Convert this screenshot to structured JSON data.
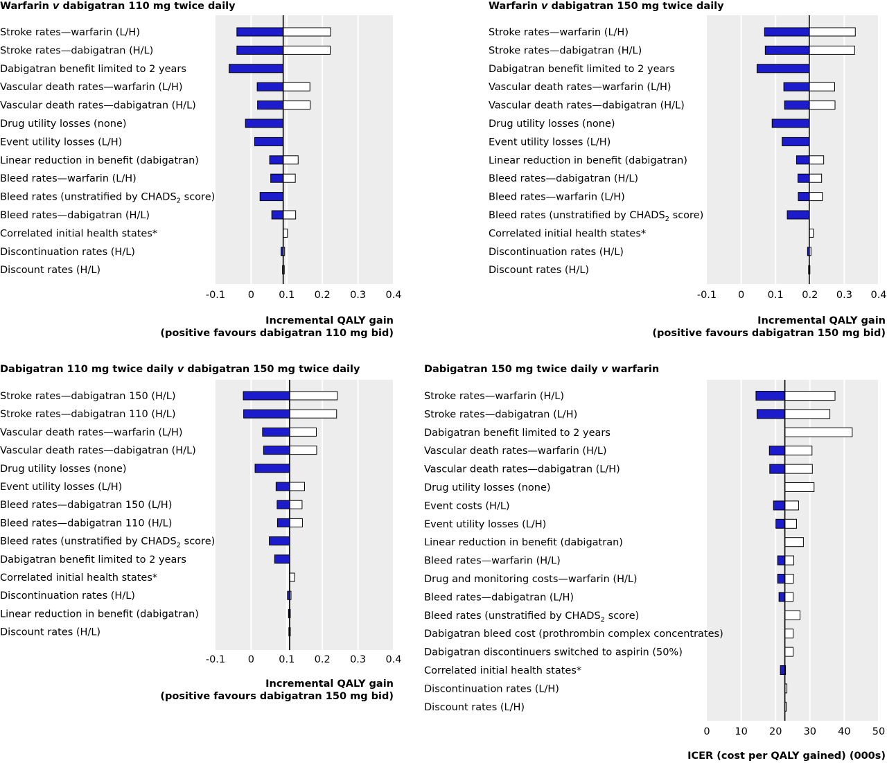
{
  "chart_data": [
    {
      "type": "bar",
      "subtype": "tornado",
      "title_parts": [
        {
          "text": "Warfarin ",
          "italic": false
        },
        {
          "text": "v",
          "italic": true
        },
        {
          "text": " dabigatran 110 mg twice daily",
          "italic": false
        }
      ],
      "xlabel_lines": [
        "Incremental QALY gain",
        "(positive favours dabigatran 110 mg bid)"
      ],
      "xlim": [
        -0.1,
        0.4
      ],
      "xticks": [
        -0.1,
        0,
        0.1,
        0.2,
        0.3,
        0.4
      ],
      "tick_labels": [
        "-0.1",
        "0",
        "0.1",
        "0.2",
        "0.3",
        "0.4"
      ],
      "base": 0.09,
      "grid": true,
      "bars": [
        {
          "label": "Stroke rates—warfarin (L/H)",
          "low": -0.04,
          "high": 0.223
        },
        {
          "label": "Stroke rates—dabigatran (H/L)",
          "low": -0.04,
          "high": 0.222
        },
        {
          "label": "Dabigatran benefit limited to 2 years",
          "low": -0.062,
          "high": 0.09
        },
        {
          "label": "Vascular death rates—warfarin (L/H)",
          "low": 0.017,
          "high": 0.165
        },
        {
          "label": "Vascular death rates—dabigatran (H/L)",
          "low": 0.018,
          "high": 0.166
        },
        {
          "label": "Drug utility losses (none)",
          "low": -0.016,
          "high": 0.09
        },
        {
          "label": "Event utility losses (L/H)",
          "low": 0.01,
          "high": 0.09
        },
        {
          "label": "Linear reduction in benefit (dabigatran)",
          "low": 0.052,
          "high": 0.132
        },
        {
          "label": "Bleed rates—warfarin (L/H)",
          "low": 0.055,
          "high": 0.124
        },
        {
          "label": "Bleed rates (unstratified by CHADS[2] score)",
          "low": 0.025,
          "high": 0.09
        },
        {
          "label": "Bleed rates—dabigatran (H/L)",
          "low": 0.058,
          "high": 0.125
        },
        {
          "label": "Correlated initial health states*",
          "low": 0.09,
          "high": 0.102
        },
        {
          "label": "Discontinuation rates (H/L)",
          "low": 0.084,
          "high": 0.094
        },
        {
          "label": "Discount rates (H/L)",
          "low": 0.088,
          "high": 0.093
        }
      ]
    },
    {
      "type": "bar",
      "subtype": "tornado",
      "title_parts": [
        {
          "text": "Warfarin ",
          "italic": false
        },
        {
          "text": "v",
          "italic": true
        },
        {
          "text": " dabigatran 150 mg twice daily",
          "italic": false
        }
      ],
      "xlabel_lines": [
        "Incremental QALY gain",
        "(positive favours dabigatran 150 mg bid)"
      ],
      "xlim": [
        -0.1,
        0.4
      ],
      "xticks": [
        -0.1,
        0,
        0.1,
        0.2,
        0.3,
        0.4
      ],
      "tick_labels": [
        "-0.1",
        "0",
        "0.1",
        "0.2",
        "0.3",
        "0.4"
      ],
      "base": 0.198,
      "grid": true,
      "bars": [
        {
          "label": "Stroke rates—warfarin (L/H)",
          "low": 0.068,
          "high": 0.332
        },
        {
          "label": "Stroke rates—dabigatran (H/L)",
          "low": 0.07,
          "high": 0.33
        },
        {
          "label": "Dabigatran benefit limited to 2 years",
          "low": 0.046,
          "high": 0.198
        },
        {
          "label": "Vascular death rates—warfarin (L/H)",
          "low": 0.124,
          "high": 0.272
        },
        {
          "label": "Vascular death rates—dabigatran (H/L)",
          "low": 0.126,
          "high": 0.273
        },
        {
          "label": "Drug utility losses (none)",
          "low": 0.09,
          "high": 0.198
        },
        {
          "label": "Event utility losses (L/H)",
          "low": 0.119,
          "high": 0.198
        },
        {
          "label": "Linear reduction in benefit (dabigatran)",
          "low": 0.161,
          "high": 0.24
        },
        {
          "label": "Bleed rates—dabigatran (H/L)",
          "low": 0.165,
          "high": 0.234
        },
        {
          "label": "Bleed rates—warfarin (L/H)",
          "low": 0.166,
          "high": 0.236
        },
        {
          "label": "Bleed rates (unstratified by CHADS[2] score)",
          "low": 0.134,
          "high": 0.198
        },
        {
          "label": "Correlated initial health states*",
          "low": 0.198,
          "high": 0.21
        },
        {
          "label": "Discontinuation rates (H/L)",
          "low": 0.193,
          "high": 0.203
        },
        {
          "label": "Discount rates (H/L)",
          "low": 0.196,
          "high": 0.2
        }
      ]
    },
    {
      "type": "bar",
      "subtype": "tornado",
      "title_parts": [
        {
          "text": "Dabigatran 110 mg twice daily ",
          "italic": false
        },
        {
          "text": "v",
          "italic": true
        },
        {
          "text": " dabigatran 150 mg twice daily",
          "italic": false
        }
      ],
      "xlabel_lines": [
        "Incremental QALY gain",
        "(positive favours dabigatran 150 mg bid)"
      ],
      "xlim": [
        -0.1,
        0.4
      ],
      "xticks": [
        -0.1,
        0,
        0.1,
        0.2,
        0.3,
        0.4
      ],
      "tick_labels": [
        "-0.1",
        "0",
        "0.1",
        "0.2",
        "0.3",
        "0.4"
      ],
      "base": 0.108,
      "grid": true,
      "bars": [
        {
          "label": "Stroke rates—dabigatran 150 (H/L)",
          "low": -0.022,
          "high": 0.242
        },
        {
          "label": "Stroke rates—dabigatran 110 (H/L)",
          "low": -0.021,
          "high": 0.24
        },
        {
          "label": "Vascular death rates—warfarin (L/H)",
          "low": 0.032,
          "high": 0.183
        },
        {
          "label": "Vascular death rates—dabigatran (H/L)",
          "low": 0.035,
          "high": 0.184
        },
        {
          "label": "Drug utility losses (none)",
          "low": 0.011,
          "high": 0.108
        },
        {
          "label": "Event utility losses (L/H)",
          "low": 0.07,
          "high": 0.15
        },
        {
          "label": "Bleed rates—dabigatran 150 (L/H)",
          "low": 0.073,
          "high": 0.143
        },
        {
          "label": "Bleed rates—dabigatran 110 (H/L)",
          "low": 0.074,
          "high": 0.144
        },
        {
          "label": "Bleed rates (unstratified by CHADS[2] score)",
          "low": 0.051,
          "high": 0.108
        },
        {
          "label": "Dabigatran benefit limited to 2 years",
          "low": 0.066,
          "high": 0.108
        },
        {
          "label": "Correlated initial health states*",
          "low": 0.108,
          "high": 0.122
        },
        {
          "label": "Discontinuation rates (H/L)",
          "low": 0.102,
          "high": 0.112
        },
        {
          "label": "Linear reduction in benefit (dabigatran)",
          "low": 0.105,
          "high": 0.109
        },
        {
          "label": "Discount rates (H/L)",
          "low": 0.106,
          "high": 0.11
        }
      ]
    },
    {
      "type": "bar",
      "subtype": "tornado",
      "title_parts": [
        {
          "text": "Dabigatran 150 mg twice daily ",
          "italic": false
        },
        {
          "text": "v",
          "italic": true
        },
        {
          "text": " warfarin",
          "italic": false
        }
      ],
      "xlabel_lines": [
        "ICER (cost per QALY gained) (000s)"
      ],
      "xlim": [
        0,
        50
      ],
      "xticks": [
        0,
        10,
        20,
        30,
        40,
        50
      ],
      "tick_labels": [
        "0",
        "10",
        "20",
        "30",
        "40",
        "50"
      ],
      "base": 22.7,
      "grid": true,
      "bars": [
        {
          "label": "Stroke rates—warfarin (H/L)",
          "low": 14.3,
          "high": 37.3
        },
        {
          "label": "Stroke rates—dabigatran (L/H)",
          "low": 14.6,
          "high": 35.8
        },
        {
          "label": "Dabigatran benefit limited to 2 years",
          "low": 22.7,
          "high": 42.3
        },
        {
          "label": "Vascular death rates—warfarin (H/L)",
          "low": 18.2,
          "high": 30.6
        },
        {
          "label": "Vascular death rates—dabigatran (L/H)",
          "low": 18.3,
          "high": 30.7
        },
        {
          "label": "Drug utility losses (none)",
          "low": 22.7,
          "high": 31.2
        },
        {
          "label": "Event costs (H/L)",
          "low": 19.4,
          "high": 26.7
        },
        {
          "label": "Event utility losses (L/H)",
          "low": 20.1,
          "high": 26.1
        },
        {
          "label": "Linear reduction in benefit (dabigatran)",
          "low": 22.7,
          "high": 28.1
        },
        {
          "label": "Bleed rates—warfarin (H/L)",
          "low": 20.6,
          "high": 25.3
        },
        {
          "label": "Drug and monitoring costs—warfarin (H/L)",
          "low": 20.6,
          "high": 25.2
        },
        {
          "label": "Bleed rates—dabigatran (L/H)",
          "low": 21.0,
          "high": 25.1
        },
        {
          "label": "Bleed rates (unstratified by CHADS[2] score)",
          "low": 22.7,
          "high": 27.1
        },
        {
          "label": "Dabigatran bleed cost (prothrombin complex concentrates)",
          "low": 22.7,
          "high": 25.1
        },
        {
          "label": "Dabigatran discontinuers switched to aspirin (50%)",
          "low": 22.7,
          "high": 25.1
        },
        {
          "label": "Correlated initial health states*",
          "low": 21.4,
          "high": 22.9
        },
        {
          "label": "Discontinuation rates (L/H)",
          "low": 22.7,
          "high": 23.3
        },
        {
          "label": "Discount rates (L/H)",
          "low": 22.7,
          "high": 23.1
        }
      ]
    }
  ],
  "colors": {
    "low_bar": "#1c1ccd",
    "high_bar": "#ffffff",
    "bar_stroke": "#000000",
    "panel_bg": "#ededed",
    "grid": "#ffffff",
    "baseline": "#000000"
  }
}
